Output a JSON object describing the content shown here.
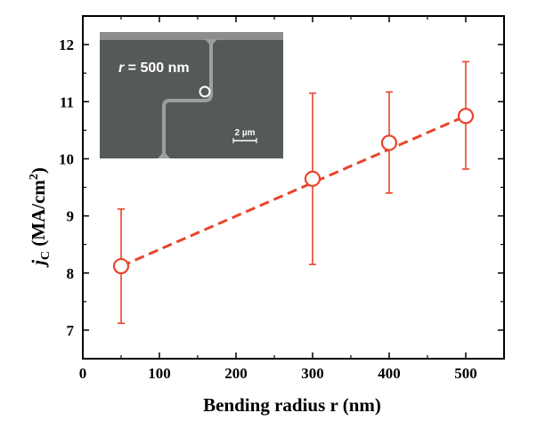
{
  "chart_data": {
    "type": "scatter",
    "xlabel": "Bending radius r (nm)",
    "ylabel": {
      "symbol": "j",
      "subscript": "C",
      "unit": " (MA/cm",
      "superscript": "2",
      "close": ")"
    },
    "xlim": [
      0,
      550
    ],
    "ylim": [
      6.5,
      12.5
    ],
    "xticks": [
      0,
      100,
      200,
      300,
      400,
      500
    ],
    "yticks": [
      7,
      8,
      9,
      10,
      11,
      12
    ],
    "grid": false,
    "legend": "none",
    "series": [
      {
        "x": [
          50,
          300,
          400,
          500
        ],
        "y": [
          8.12,
          9.65,
          10.28,
          10.75
        ],
        "y_error_low": [
          7.12,
          8.15,
          9.4,
          9.82
        ],
        "y_error_high": [
          9.12,
          11.15,
          11.17,
          11.7
        ],
        "color": "#e8452c",
        "marker": "open-circle"
      }
    ],
    "trend_line": {
      "style": "dashed",
      "color": "#e8452c",
      "x": [
        50,
        500
      ],
      "y": [
        8.12,
        10.75
      ]
    },
    "inset": {
      "description": "SEM micrograph",
      "label_prefix": "r",
      "label_value": " = 500 nm",
      "scale_bar": "2 µm"
    }
  }
}
